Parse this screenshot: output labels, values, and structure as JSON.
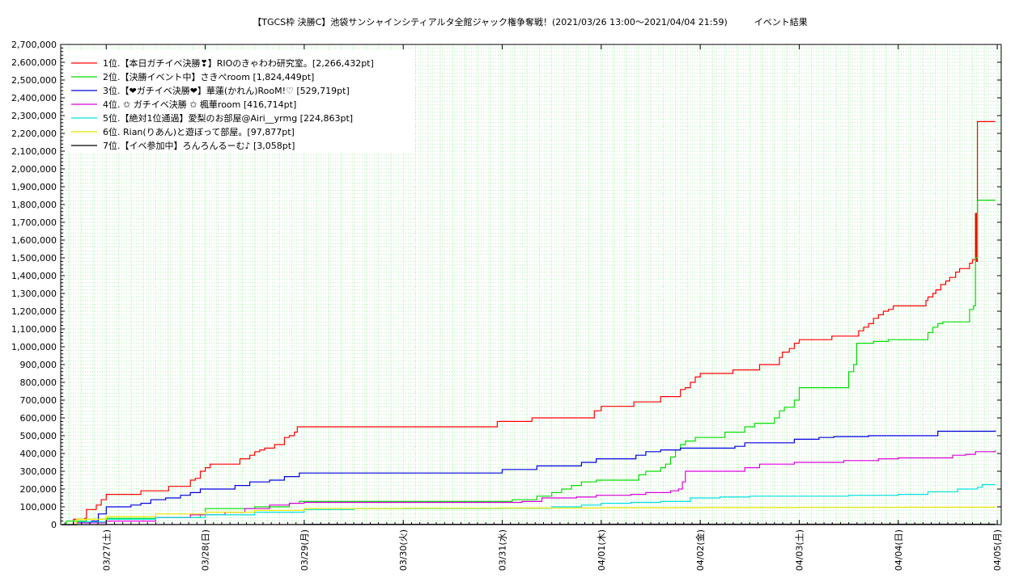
{
  "chart_data": {
    "type": "line",
    "title": "【TGCS枠 決勝C】池袋サンシャインシティアルタ全館ジャック権争奪戦！(2021/03/26 13:00〜2021/04/04 21:59)　　　イベント結果",
    "xlabel": "",
    "ylabel": "",
    "ylim": [
      0,
      2700000
    ],
    "xlim_days": [
      -0.46,
      9.04
    ],
    "y_ticks": [
      0,
      100000,
      200000,
      300000,
      400000,
      500000,
      600000,
      700000,
      800000,
      900000,
      1000000,
      1100000,
      1200000,
      1300000,
      1400000,
      1500000,
      1600000,
      1700000,
      1800000,
      1900000,
      2000000,
      2100000,
      2200000,
      2300000,
      2400000,
      2500000,
      2600000,
      2700000
    ],
    "y_tick_labels": [
      "0",
      "100,000",
      "200,000",
      "300,000",
      "400,000",
      "500,000",
      "600,000",
      "700,000",
      "800,000",
      "900,000",
      "1,000,000",
      "1,100,000",
      "1,200,000",
      "1,300,000",
      "1,400,000",
      "1,500,000",
      "1,600,000",
      "1,700,000",
      "1,800,000",
      "1,900,000",
      "2,000,000",
      "2,100,000",
      "2,200,000",
      "2,300,000",
      "2,400,000",
      "2,500,000",
      "2,600,000",
      "2,700,000"
    ],
    "x_tick_labels": [
      "03/27(土)",
      "03/28(日)",
      "03/29(月)",
      "03/30(火)",
      "03/31(水)",
      "04/01(木)",
      "04/02(金)",
      "04/03(土)",
      "04/04(日)",
      "04/05(月)"
    ],
    "grid": true,
    "legend_position": "top-left",
    "series": [
      {
        "name": "1位.【本日ガチイベ決勝❣】RIOのきゃわわ研究室。[2,266,432pt]",
        "color": "#ff0000",
        "points": [
          [
            -0.45,
            0
          ],
          [
            -0.33,
            30000
          ],
          [
            -0.22,
            35000
          ],
          [
            -0.2,
            85000
          ],
          [
            -0.1,
            110000
          ],
          [
            -0.05,
            140000
          ],
          [
            0.0,
            170000
          ],
          [
            0.3,
            170000
          ],
          [
            0.35,
            190000
          ],
          [
            0.6,
            190000
          ],
          [
            0.63,
            215000
          ],
          [
            0.8,
            215000
          ],
          [
            0.85,
            250000
          ],
          [
            0.9,
            260000
          ],
          [
            0.95,
            300000
          ],
          [
            1.0,
            320000
          ],
          [
            1.05,
            340000
          ],
          [
            1.3,
            340000
          ],
          [
            1.35,
            370000
          ],
          [
            1.45,
            390000
          ],
          [
            1.5,
            410000
          ],
          [
            1.55,
            420000
          ],
          [
            1.6,
            430000
          ],
          [
            1.7,
            450000
          ],
          [
            1.8,
            490000
          ],
          [
            1.85,
            500000
          ],
          [
            1.9,
            520000
          ],
          [
            1.93,
            550000
          ],
          [
            3.93,
            550000
          ],
          [
            3.95,
            580000
          ],
          [
            4.25,
            580000
          ],
          [
            4.3,
            600000
          ],
          [
            4.9,
            600000
          ],
          [
            4.93,
            640000
          ],
          [
            5.0,
            665000
          ],
          [
            5.3,
            665000
          ],
          [
            5.33,
            690000
          ],
          [
            5.55,
            690000
          ],
          [
            5.6,
            720000
          ],
          [
            5.78,
            720000
          ],
          [
            5.8,
            760000
          ],
          [
            5.85,
            770000
          ],
          [
            5.9,
            800000
          ],
          [
            5.95,
            830000
          ],
          [
            6.0,
            850000
          ],
          [
            6.3,
            850000
          ],
          [
            6.33,
            870000
          ],
          [
            6.58,
            870000
          ],
          [
            6.6,
            900000
          ],
          [
            6.78,
            900000
          ],
          [
            6.8,
            940000
          ],
          [
            6.83,
            970000
          ],
          [
            6.9,
            990000
          ],
          [
            6.95,
            1020000
          ],
          [
            7.0,
            1040000
          ],
          [
            7.3,
            1040000
          ],
          [
            7.33,
            1060000
          ],
          [
            7.55,
            1060000
          ],
          [
            7.6,
            1090000
          ],
          [
            7.65,
            1110000
          ],
          [
            7.7,
            1130000
          ],
          [
            7.75,
            1160000
          ],
          [
            7.8,
            1180000
          ],
          [
            7.85,
            1200000
          ],
          [
            7.9,
            1210000
          ],
          [
            7.95,
            1230000
          ],
          [
            8.25,
            1230000
          ],
          [
            8.28,
            1260000
          ],
          [
            8.3,
            1280000
          ],
          [
            8.35,
            1300000
          ],
          [
            8.38,
            1320000
          ],
          [
            8.43,
            1350000
          ],
          [
            8.48,
            1370000
          ],
          [
            8.52,
            1390000
          ],
          [
            8.58,
            1420000
          ],
          [
            8.62,
            1440000
          ],
          [
            8.68,
            1440000
          ],
          [
            8.72,
            1470000
          ],
          [
            8.75,
            1490000
          ],
          [
            8.78,
            1750000
          ],
          [
            8.79,
            1480000
          ],
          [
            8.8,
            2266432
          ],
          [
            8.98,
            2266432
          ]
        ]
      },
      {
        "name": "2位.【決勝イベント中】さきぺroom [1,824,449pt]",
        "color": "#00dd00",
        "points": [
          [
            -0.45,
            0
          ],
          [
            -0.4,
            20000
          ],
          [
            -0.2,
            30000
          ],
          [
            0.0,
            35000
          ],
          [
            0.5,
            40000
          ],
          [
            0.95,
            55000
          ],
          [
            1.0,
            90000
          ],
          [
            1.5,
            100000
          ],
          [
            1.85,
            120000
          ],
          [
            1.95,
            130000
          ],
          [
            2.5,
            130000
          ],
          [
            3.0,
            130000
          ],
          [
            3.9,
            130000
          ],
          [
            4.0,
            130000
          ],
          [
            4.1,
            140000
          ],
          [
            4.3,
            140000
          ],
          [
            4.35,
            160000
          ],
          [
            4.5,
            180000
          ],
          [
            4.6,
            200000
          ],
          [
            4.7,
            220000
          ],
          [
            4.8,
            240000
          ],
          [
            4.95,
            250000
          ],
          [
            5.3,
            250000
          ],
          [
            5.38,
            280000
          ],
          [
            5.45,
            300000
          ],
          [
            5.6,
            320000
          ],
          [
            5.65,
            340000
          ],
          [
            5.7,
            380000
          ],
          [
            5.75,
            420000
          ],
          [
            5.8,
            450000
          ],
          [
            5.85,
            470000
          ],
          [
            5.95,
            490000
          ],
          [
            6.2,
            490000
          ],
          [
            6.25,
            520000
          ],
          [
            6.45,
            550000
          ],
          [
            6.55,
            570000
          ],
          [
            6.75,
            600000
          ],
          [
            6.8,
            640000
          ],
          [
            6.85,
            660000
          ],
          [
            6.95,
            700000
          ],
          [
            7.0,
            770000
          ],
          [
            7.45,
            770000
          ],
          [
            7.5,
            860000
          ],
          [
            7.55,
            900000
          ],
          [
            7.58,
            1020000
          ],
          [
            7.75,
            1030000
          ],
          [
            7.9,
            1040000
          ],
          [
            8.25,
            1040000
          ],
          [
            8.3,
            1080000
          ],
          [
            8.35,
            1110000
          ],
          [
            8.4,
            1130000
          ],
          [
            8.45,
            1140000
          ],
          [
            8.55,
            1140000
          ],
          [
            8.7,
            1140000
          ],
          [
            8.72,
            1210000
          ],
          [
            8.76,
            1230000
          ],
          [
            8.78,
            1500000
          ],
          [
            8.8,
            1824449
          ],
          [
            8.98,
            1824449
          ]
        ]
      },
      {
        "name": "3位.【❤ガチイベ決勝❤】華蓮(かれん)RooM!♡ [529,719pt]",
        "color": "#0000dd",
        "points": [
          [
            -0.45,
            0
          ],
          [
            -0.3,
            10000
          ],
          [
            -0.15,
            20000
          ],
          [
            -0.08,
            60000
          ],
          [
            0.0,
            100000
          ],
          [
            0.25,
            110000
          ],
          [
            0.35,
            120000
          ],
          [
            0.45,
            140000
          ],
          [
            0.6,
            150000
          ],
          [
            0.75,
            165000
          ],
          [
            0.85,
            180000
          ],
          [
            0.95,
            200000
          ],
          [
            1.25,
            200000
          ],
          [
            1.3,
            220000
          ],
          [
            1.45,
            240000
          ],
          [
            1.65,
            250000
          ],
          [
            1.8,
            270000
          ],
          [
            1.95,
            290000
          ],
          [
            3.95,
            290000
          ],
          [
            4.0,
            310000
          ],
          [
            4.3,
            310000
          ],
          [
            4.35,
            330000
          ],
          [
            4.75,
            330000
          ],
          [
            4.8,
            350000
          ],
          [
            4.95,
            370000
          ],
          [
            5.3,
            370000
          ],
          [
            5.35,
            390000
          ],
          [
            5.45,
            410000
          ],
          [
            5.6,
            420000
          ],
          [
            5.8,
            430000
          ],
          [
            6.3,
            430000
          ],
          [
            6.35,
            440000
          ],
          [
            6.45,
            460000
          ],
          [
            6.8,
            460000
          ],
          [
            6.95,
            480000
          ],
          [
            7.2,
            490000
          ],
          [
            7.35,
            495000
          ],
          [
            7.7,
            500000
          ],
          [
            8.3,
            500000
          ],
          [
            8.4,
            525000
          ],
          [
            8.98,
            529719
          ]
        ]
      },
      {
        "name": "4位. ✩ ガチイベ決勝 ✩ 楓華room [416,714pt]",
        "color": "#dd00dd",
        "points": [
          [
            -0.45,
            0
          ],
          [
            -0.3,
            10000
          ],
          [
            0.0,
            20000
          ],
          [
            0.5,
            40000
          ],
          [
            0.85,
            55000
          ],
          [
            1.2,
            70000
          ],
          [
            1.4,
            90000
          ],
          [
            1.65,
            110000
          ],
          [
            1.85,
            120000
          ],
          [
            2.0,
            125000
          ],
          [
            3.0,
            125000
          ],
          [
            3.9,
            125000
          ],
          [
            4.2,
            130000
          ],
          [
            4.4,
            150000
          ],
          [
            4.75,
            155000
          ],
          [
            4.95,
            165000
          ],
          [
            5.3,
            170000
          ],
          [
            5.45,
            180000
          ],
          [
            5.7,
            190000
          ],
          [
            5.78,
            200000
          ],
          [
            5.82,
            240000
          ],
          [
            5.85,
            300000
          ],
          [
            6.25,
            300000
          ],
          [
            6.45,
            320000
          ],
          [
            6.6,
            340000
          ],
          [
            6.95,
            350000
          ],
          [
            7.2,
            350000
          ],
          [
            7.45,
            360000
          ],
          [
            7.8,
            370000
          ],
          [
            8.0,
            375000
          ],
          [
            8.3,
            375000
          ],
          [
            8.55,
            390000
          ],
          [
            8.68,
            395000
          ],
          [
            8.78,
            410000
          ],
          [
            8.98,
            416714
          ]
        ]
      },
      {
        "name": "5位.【絶対1位通過】愛梨のお部屋@Airi__yrmg [224,863pt]",
        "color": "#00e0e0",
        "points": [
          [
            -0.45,
            0
          ],
          [
            -0.3,
            15000
          ],
          [
            0.0,
            30000
          ],
          [
            0.5,
            40000
          ],
          [
            1.0,
            55000
          ],
          [
            1.5,
            70000
          ],
          [
            2.0,
            85000
          ],
          [
            2.5,
            90000
          ],
          [
            3.0,
            90000
          ],
          [
            3.5,
            90000
          ],
          [
            4.0,
            92000
          ],
          [
            4.5,
            100000
          ],
          [
            4.8,
            110000
          ],
          [
            5.0,
            120000
          ],
          [
            5.3,
            125000
          ],
          [
            5.6,
            130000
          ],
          [
            5.9,
            150000
          ],
          [
            6.2,
            155000
          ],
          [
            6.5,
            160000
          ],
          [
            7.0,
            160000
          ],
          [
            7.5,
            165000
          ],
          [
            8.0,
            170000
          ],
          [
            8.3,
            185000
          ],
          [
            8.6,
            200000
          ],
          [
            8.8,
            210000
          ],
          [
            8.85,
            225000
          ],
          [
            8.98,
            224863
          ]
        ]
      },
      {
        "name": "6位. Rian(りあん)と遊ぼって部屋。[97,877pt]",
        "color": "#e8e800",
        "points": [
          [
            -0.45,
            0
          ],
          [
            -0.3,
            30000
          ],
          [
            0.0,
            45000
          ],
          [
            0.5,
            60000
          ],
          [
            1.0,
            70000
          ],
          [
            1.5,
            80000
          ],
          [
            2.0,
            90000
          ],
          [
            3.0,
            92000
          ],
          [
            4.0,
            93000
          ],
          [
            5.0,
            95000
          ],
          [
            6.0,
            96000
          ],
          [
            7.0,
            97000
          ],
          [
            8.0,
            97500
          ],
          [
            8.98,
            97877
          ]
        ]
      },
      {
        "name": "7位.【イベ参加中】ろんろんるーむ♪ [3,058pt]",
        "color": "#000000",
        "points": [
          [
            -0.45,
            0
          ],
          [
            0.0,
            1000
          ],
          [
            2.0,
            2000
          ],
          [
            5.0,
            2500
          ],
          [
            8.98,
            3058
          ]
        ]
      }
    ]
  }
}
